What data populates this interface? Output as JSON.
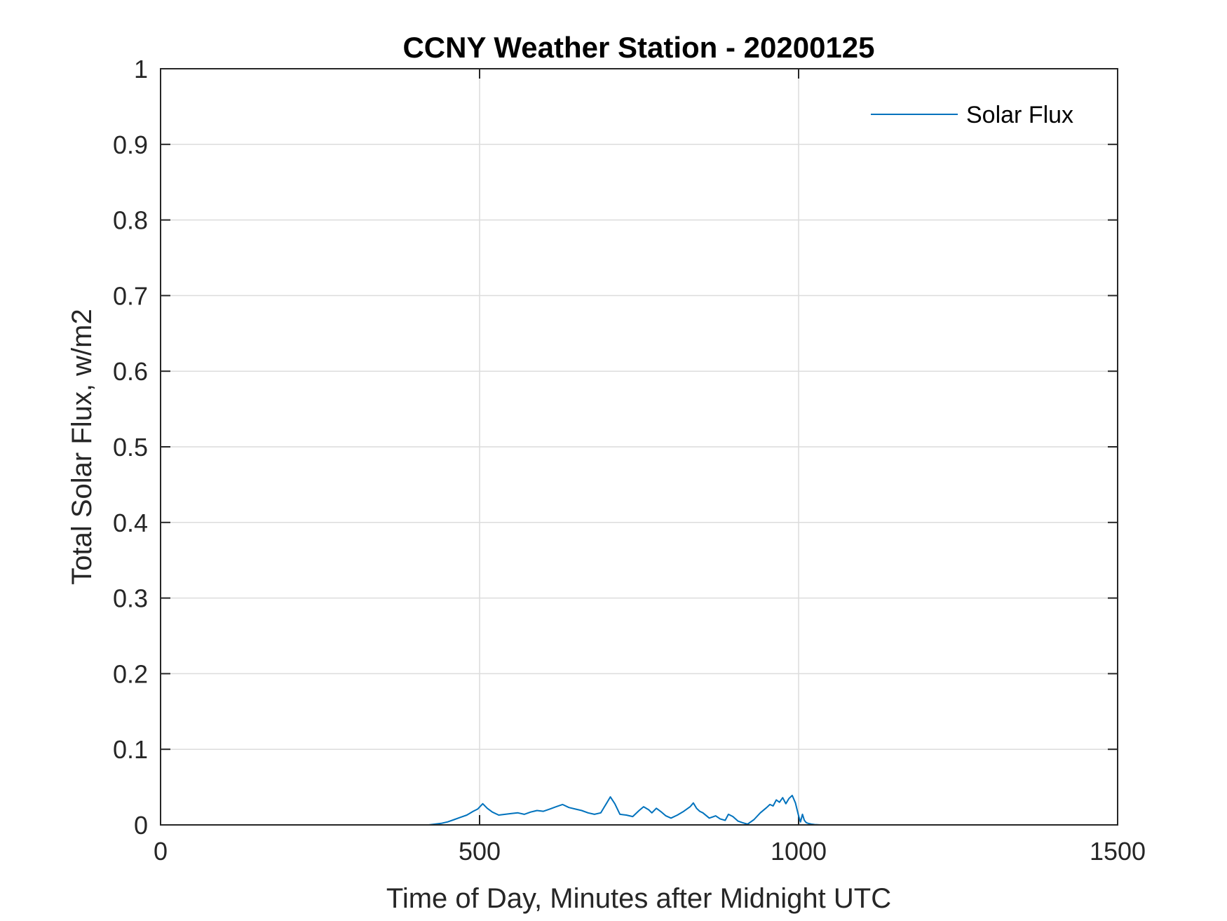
{
  "chart_data": {
    "type": "line",
    "title": "CCNY Weather Station - 20200125",
    "xlabel": "Time of Day, Minutes after Midnight UTC",
    "ylabel": "Total Solar Flux, w/m2",
    "xlim": [
      0,
      1500
    ],
    "ylim": [
      0,
      1
    ],
    "xticks": [
      0,
      500,
      1000,
      1500
    ],
    "xtick_labels": [
      "0",
      "500",
      "1000",
      "1500"
    ],
    "yticks": [
      0,
      0.1,
      0.2,
      0.3,
      0.4,
      0.5,
      0.6,
      0.7,
      0.8,
      0.9,
      1
    ],
    "ytick_labels": [
      "0",
      "0.1",
      "0.2",
      "0.3",
      "0.4",
      "0.5",
      "0.6",
      "0.7",
      "0.8",
      "0.9",
      "1"
    ],
    "grid": true,
    "legend_position": "top-right",
    "series": [
      {
        "name": "Solar Flux",
        "color": "#0072BD",
        "x": [
          0,
          200,
          420,
          430,
          440,
          450,
          460,
          470,
          480,
          490,
          497,
          505,
          512,
          520,
          530,
          540,
          550,
          560,
          570,
          580,
          590,
          600,
          610,
          620,
          630,
          640,
          650,
          660,
          670,
          680,
          690,
          695,
          700,
          705,
          712,
          720,
          730,
          740,
          750,
          757,
          765,
          770,
          777,
          785,
          792,
          800,
          810,
          820,
          830,
          835,
          840,
          845,
          850,
          860,
          870,
          877,
          885,
          890,
          897,
          905,
          912,
          920,
          930,
          940,
          950,
          955,
          960,
          965,
          970,
          975,
          980,
          985,
          990,
          995,
          1000,
          1003,
          1006,
          1009,
          1012,
          1015,
          1020,
          1025,
          1035,
          1100,
          1440
        ],
        "y": [
          0,
          0,
          0,
          0.001,
          0.002,
          0.004,
          0.007,
          0.01,
          0.013,
          0.018,
          0.021,
          0.028,
          0.022,
          0.017,
          0.013,
          0.014,
          0.015,
          0.016,
          0.014,
          0.017,
          0.019,
          0.018,
          0.021,
          0.024,
          0.027,
          0.023,
          0.021,
          0.019,
          0.016,
          0.014,
          0.016,
          0.023,
          0.03,
          0.037,
          0.028,
          0.014,
          0.013,
          0.011,
          0.019,
          0.024,
          0.02,
          0.016,
          0.022,
          0.017,
          0.012,
          0.009,
          0.013,
          0.018,
          0.024,
          0.029,
          0.022,
          0.018,
          0.016,
          0.009,
          0.012,
          0.008,
          0.006,
          0.014,
          0.011,
          0.005,
          0.003,
          0.001,
          0.007,
          0.016,
          0.023,
          0.027,
          0.025,
          0.033,
          0.03,
          0.036,
          0.028,
          0.035,
          0.039,
          0.029,
          0.012,
          0.004,
          0.014,
          0.006,
          0.003,
          0.002,
          0.001,
          0.0005,
          0,
          0,
          0
        ]
      }
    ]
  }
}
